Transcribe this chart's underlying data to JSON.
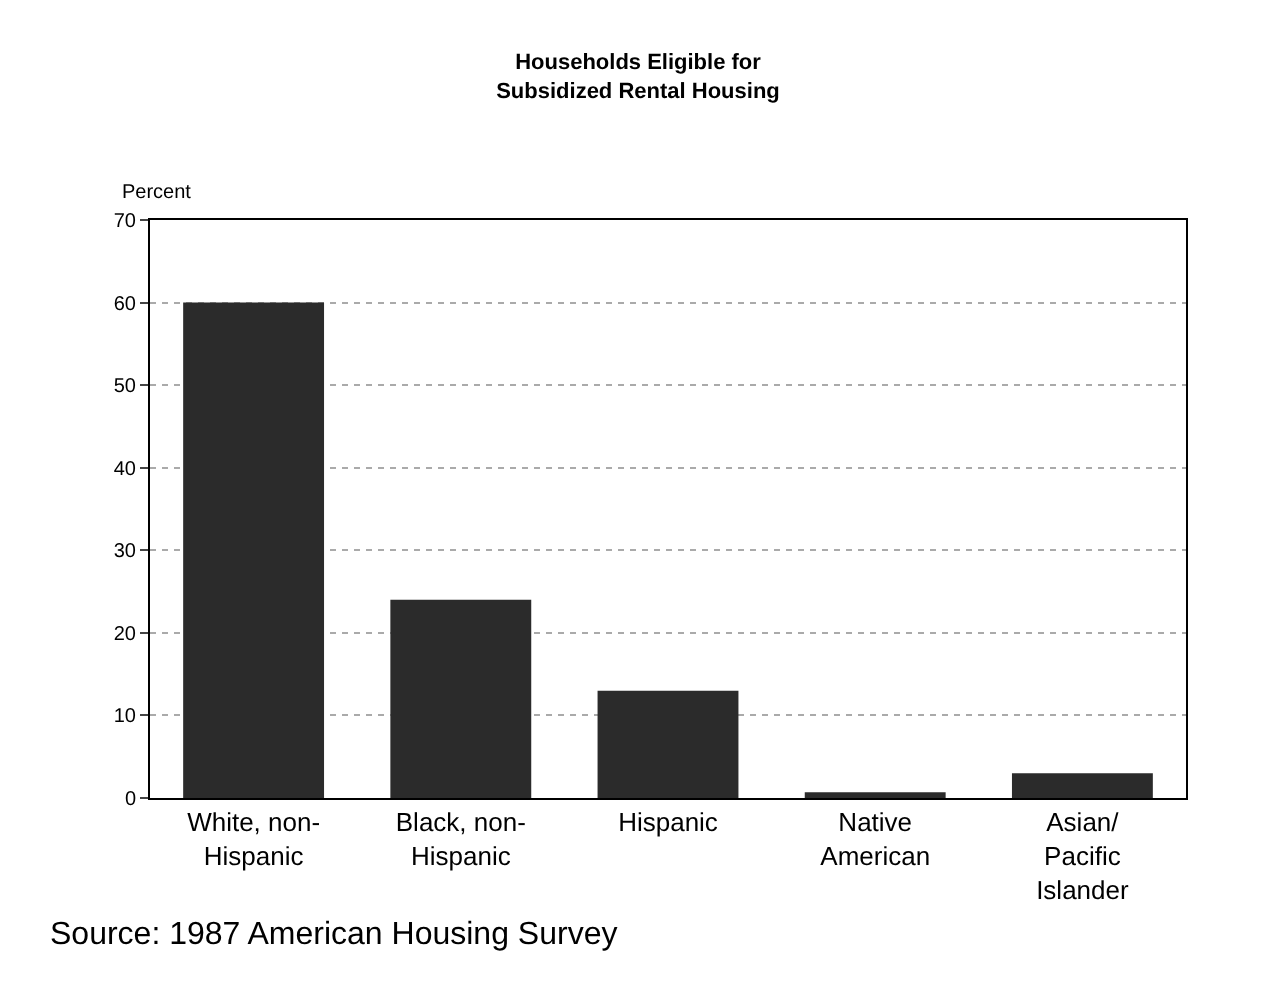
{
  "chart_data": {
    "type": "bar",
    "title": "Households Eligible for\nSubsidized Rental Housing",
    "ylabel": "Percent",
    "categories": [
      "White, non-\nHispanic",
      "Black, non-\nHispanic",
      "Hispanic",
      "Native\nAmerican",
      "Asian/\nPacific\nIslander"
    ],
    "values": [
      60,
      24,
      13,
      0.7,
      3
    ],
    "color": "#2b2b2b",
    "ylim": [
      0,
      70
    ],
    "yticks": [
      0,
      10,
      20,
      30,
      40,
      50,
      60,
      70
    ],
    "grid": "y",
    "annotations": [
      "Source: 1987 American Housing Survey"
    ]
  }
}
